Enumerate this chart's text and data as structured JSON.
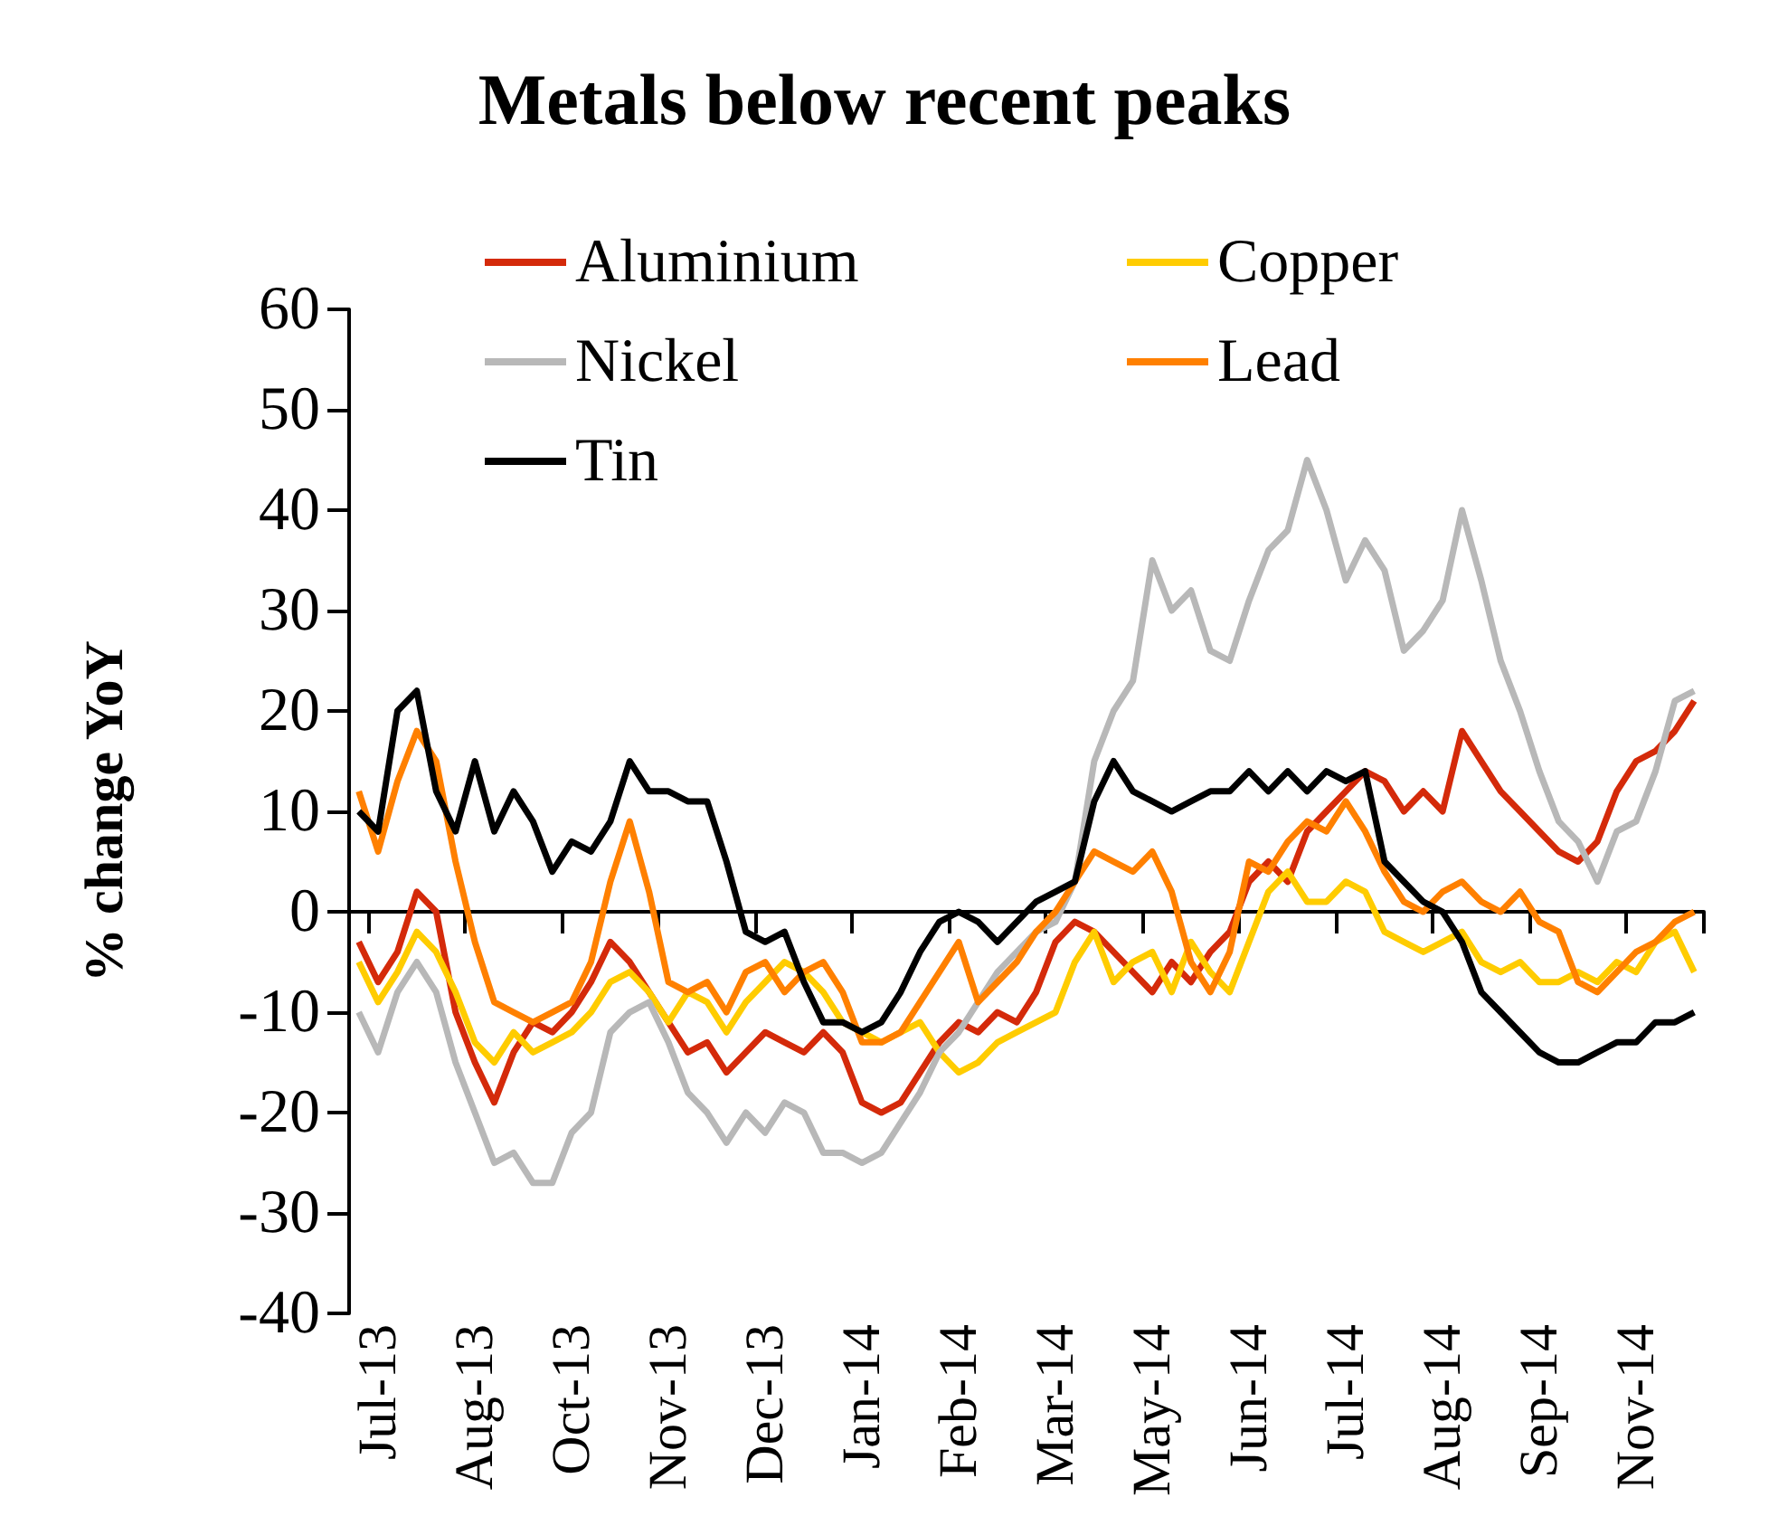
{
  "chart_data": {
    "type": "line",
    "title": "Metals below recent peaks",
    "ylabel": "% change YoY",
    "categories": [
      null,
      "Jul-13",
      null,
      null,
      null,
      null,
      "Aug-13",
      null,
      null,
      null,
      null,
      "Oct-13",
      null,
      null,
      null,
      null,
      "Nov-13",
      null,
      null,
      null,
      null,
      "Dec-13",
      null,
      null,
      null,
      null,
      "Jan-14",
      null,
      null,
      null,
      null,
      "Feb-14",
      null,
      null,
      null,
      null,
      "Mar-14",
      null,
      null,
      null,
      null,
      "May-14",
      null,
      null,
      null,
      null,
      "Jun-14",
      null,
      null,
      null,
      null,
      "Jul-14",
      null,
      null,
      null,
      null,
      "Aug-14",
      null,
      null,
      null,
      null,
      "Sep-14",
      null,
      null,
      null,
      null,
      "Nov-14",
      null,
      null,
      null
    ],
    "series": [
      {
        "name": "Aluminium",
        "color": "#d42a0a",
        "values": [
          -3,
          -7,
          -4,
          2,
          0,
          -10,
          -15,
          -19,
          -14,
          -11,
          -12,
          -10,
          -7,
          -3,
          -5,
          -8,
          -11,
          -14,
          -13,
          -16,
          -14,
          -12,
          -13,
          -14,
          -12,
          -14,
          -19,
          -20,
          -19,
          -16,
          -13,
          -11,
          -12,
          -10,
          -11,
          -8,
          -3,
          -1,
          -2,
          -4,
          -6,
          -8,
          -5,
          -7,
          -4,
          -2,
          3,
          5,
          3,
          8,
          10,
          12,
          14,
          13,
          10,
          12,
          10,
          18,
          15,
          12,
          10,
          8,
          6,
          5,
          7,
          12,
          15,
          16,
          18,
          21
        ]
      },
      {
        "name": "Copper",
        "color": "#ffcc00",
        "values": [
          -5,
          -9,
          -6,
          -2,
          -4,
          -8,
          -13,
          -15,
          -12,
          -14,
          -13,
          -12,
          -10,
          -7,
          -6,
          -8,
          -11,
          -8,
          -9,
          -12,
          -9,
          -7,
          -5,
          -6,
          -8,
          -11,
          -12,
          -13,
          -12,
          -11,
          -14,
          -16,
          -15,
          -13,
          -12,
          -11,
          -10,
          -5,
          -2,
          -7,
          -5,
          -4,
          -8,
          -3,
          -6,
          -8,
          -3,
          2,
          4,
          1,
          1,
          3,
          2,
          -2,
          -3,
          -4,
          -3,
          -2,
          -5,
          -6,
          -5,
          -7,
          -7,
          -6,
          -7,
          -5,
          -6,
          -3,
          -2,
          -6
        ]
      },
      {
        "name": "Nickel",
        "color": "#b8b8b8",
        "values": [
          -10,
          -14,
          -8,
          -5,
          -8,
          -15,
          -20,
          -25,
          -24,
          -27,
          -27,
          -22,
          -20,
          -12,
          -10,
          -9,
          -13,
          -18,
          -20,
          -23,
          -20,
          -22,
          -19,
          -20,
          -24,
          -24,
          -25,
          -24,
          -21,
          -18,
          -14,
          -12,
          -9,
          -6,
          -4,
          -2,
          -1,
          3,
          15,
          20,
          23,
          35,
          30,
          32,
          26,
          25,
          31,
          36,
          38,
          45,
          40,
          33,
          37,
          34,
          26,
          28,
          31,
          40,
          33,
          25,
          20,
          14,
          9,
          7,
          3,
          8,
          9,
          14,
          21,
          22
        ]
      },
      {
        "name": "Lead",
        "color": "#ff8000",
        "values": [
          12,
          6,
          13,
          18,
          15,
          5,
          -3,
          -9,
          -10,
          -11,
          -10,
          -9,
          -5,
          3,
          9,
          2,
          -7,
          -8,
          -7,
          -10,
          -6,
          -5,
          -8,
          -6,
          -5,
          -8,
          -13,
          -13,
          -12,
          -9,
          -6,
          -3,
          -9,
          -7,
          -5,
          -2,
          0,
          3,
          6,
          5,
          4,
          6,
          2,
          -5,
          -8,
          -4,
          5,
          4,
          7,
          9,
          8,
          11,
          8,
          4,
          1,
          0,
          2,
          3,
          1,
          0,
          2,
          -1,
          -2,
          -7,
          -8,
          -6,
          -4,
          -3,
          -1,
          0
        ]
      },
      {
        "name": "Tin",
        "color": "#000000",
        "values": [
          10,
          8,
          20,
          22,
          12,
          8,
          15,
          8,
          12,
          9,
          4,
          7,
          6,
          9,
          15,
          12,
          12,
          11,
          11,
          5,
          -2,
          -3,
          -2,
          -7,
          -11,
          -11,
          -12,
          -11,
          -8,
          -4,
          -1,
          0,
          -1,
          -3,
          -1,
          1,
          2,
          3,
          11,
          15,
          12,
          11,
          10,
          11,
          12,
          12,
          14,
          12,
          14,
          12,
          14,
          13,
          14,
          5,
          3,
          1,
          0,
          -3,
          -8,
          -10,
          -12,
          -14,
          -15,
          -15,
          -14,
          -13,
          -13,
          -11,
          -11,
          -10
        ]
      }
    ],
    "ylim": [
      -40,
      60
    ],
    "yticks": [
      -40,
      -30,
      -20,
      -10,
      0,
      10,
      20,
      30,
      40,
      50,
      60
    ],
    "legend": "top",
    "marker": "none",
    "line_style": "solid"
  }
}
